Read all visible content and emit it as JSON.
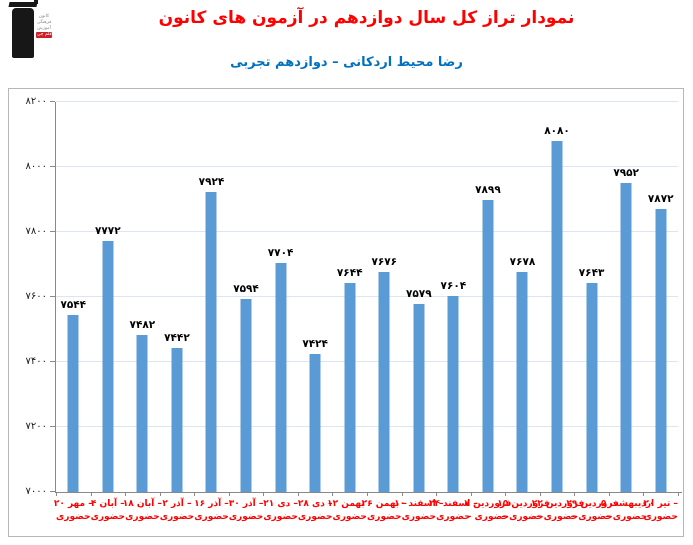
{
  "header": {
    "title": "نمودار تراز کل سال دوازدهم در آزمون های کانون",
    "subtitle": "رضا محیط اردکانی – دوازدهم تجربی",
    "logo_lines": [
      "کانون",
      "فرهنگی",
      "آموزش",
      "قلم چی"
    ]
  },
  "colors": {
    "title": "#ff0000",
    "subtitle": "#0070c0",
    "bar": "#5b9bd5",
    "x_labels": "#ff0000",
    "gridline": "#dce6f2",
    "axis": "#898989",
    "value_labels": "#000000"
  },
  "chart_data": {
    "type": "bar",
    "title": "نمودار تراز کل سال دوازدهم در آزمون های کانون",
    "subtitle": "رضا محیط اردکانی – دوازدهم تجربی",
    "xlabel": "",
    "ylabel": "",
    "ylim": [
      7000,
      8200
    ],
    "grid": true,
    "legend": "none",
    "y_ticks": [
      {
        "value": 7000,
        "label_fa": "۷۰۰۰"
      },
      {
        "value": 7200,
        "label_fa": "۷۲۰۰"
      },
      {
        "value": 7400,
        "label_fa": "۷۴۰۰"
      },
      {
        "value": 7600,
        "label_fa": "۷۶۰۰"
      },
      {
        "value": 7800,
        "label_fa": "۷۸۰۰"
      },
      {
        "value": 8000,
        "label_fa": "۸۰۰۰"
      },
      {
        "value": 8200,
        "label_fa": "۸۲۰۰"
      }
    ],
    "categories": [
      {
        "date_fa": "۲۰ مهر",
        "line1": "۲۰ مهر –",
        "line2": "حضوری"
      },
      {
        "date_fa": "۴ آبان",
        "line1": "۴ آبان –",
        "line2": "حضوری"
      },
      {
        "date_fa": "۱۸ آبان",
        "line1": "۱۸ آبان –",
        "line2": "حضوری"
      },
      {
        "date_fa": "۲ آذر",
        "line1": "۲ آذر –",
        "line2": "حضوری"
      },
      {
        "date_fa": "۱۶ آذر",
        "line1": "۱۶ آذر –",
        "line2": "حضوری"
      },
      {
        "date_fa": "۳۰ آذر",
        "line1": "۳۰ آذر –",
        "line2": "حضوری"
      },
      {
        "date_fa": "۲۱ دی",
        "line1": "۲۱ دی –",
        "line2": "حضوری"
      },
      {
        "date_fa": "۲۸ دی",
        "line1": "۲۸ دی –",
        "line2": "حضوری"
      },
      {
        "date_fa": "۱۲ بهمن",
        "line1": "۱۲ بهمن –",
        "line2": "حضوری"
      },
      {
        "date_fa": "۲۶ بهمن",
        "line1": "۲۶ بهمن –",
        "line2": "حضوری"
      },
      {
        "date_fa": "۱۰ اسفند",
        "line1": "۱۰ اسفند –",
        "line2": "حضوری"
      },
      {
        "date_fa": "۲۴ اسفند",
        "line1": "۲۴ اسفند –",
        "line2": "حضوری"
      },
      {
        "date_fa": "۷ فروردین",
        "line1": "۷ فروردین",
        "line2": "– حضوری"
      },
      {
        "date_fa": "۱۵ فروردین",
        "line1": "۱۵ فروردین",
        "line2": "– حضوری"
      },
      {
        "date_fa": "۲۲ فروردین",
        "line1": "۲۲ فروردین",
        "line2": "– حضوری"
      },
      {
        "date_fa": "۲۹ فروردین",
        "line1": "۲۹ فروردین",
        "line2": "– حضوری"
      },
      {
        "date_fa": "۵ اردیبهشت",
        "line1": "۵ اردیبهشت",
        "line2": "– حضوری"
      },
      {
        "date_fa": "۲۰ تیر",
        "line1": "۲۰ تیر –",
        "line2": "حضوری"
      }
    ],
    "values": [
      7544,
      7772,
      7482,
      7442,
      7924,
      7594,
      7704,
      7424,
      7644,
      7676,
      7579,
      7604,
      7899,
      7678,
      8080,
      7643,
      7952,
      7872
    ],
    "values_fa": [
      "۷۵۴۴",
      "۷۷۷۲",
      "۷۴۸۲",
      "۷۴۴۲",
      "۷۹۲۴",
      "۷۵۹۴",
      "۷۷۰۴",
      "۷۴۲۴",
      "۷۶۴۴",
      "۷۶۷۶",
      "۷۵۷۹",
      "۷۶۰۴",
      "۷۸۹۹",
      "۷۶۷۸",
      "۸۰۸۰",
      "۷۶۴۳",
      "۷۹۵۲",
      "۷۸۷۲"
    ]
  }
}
